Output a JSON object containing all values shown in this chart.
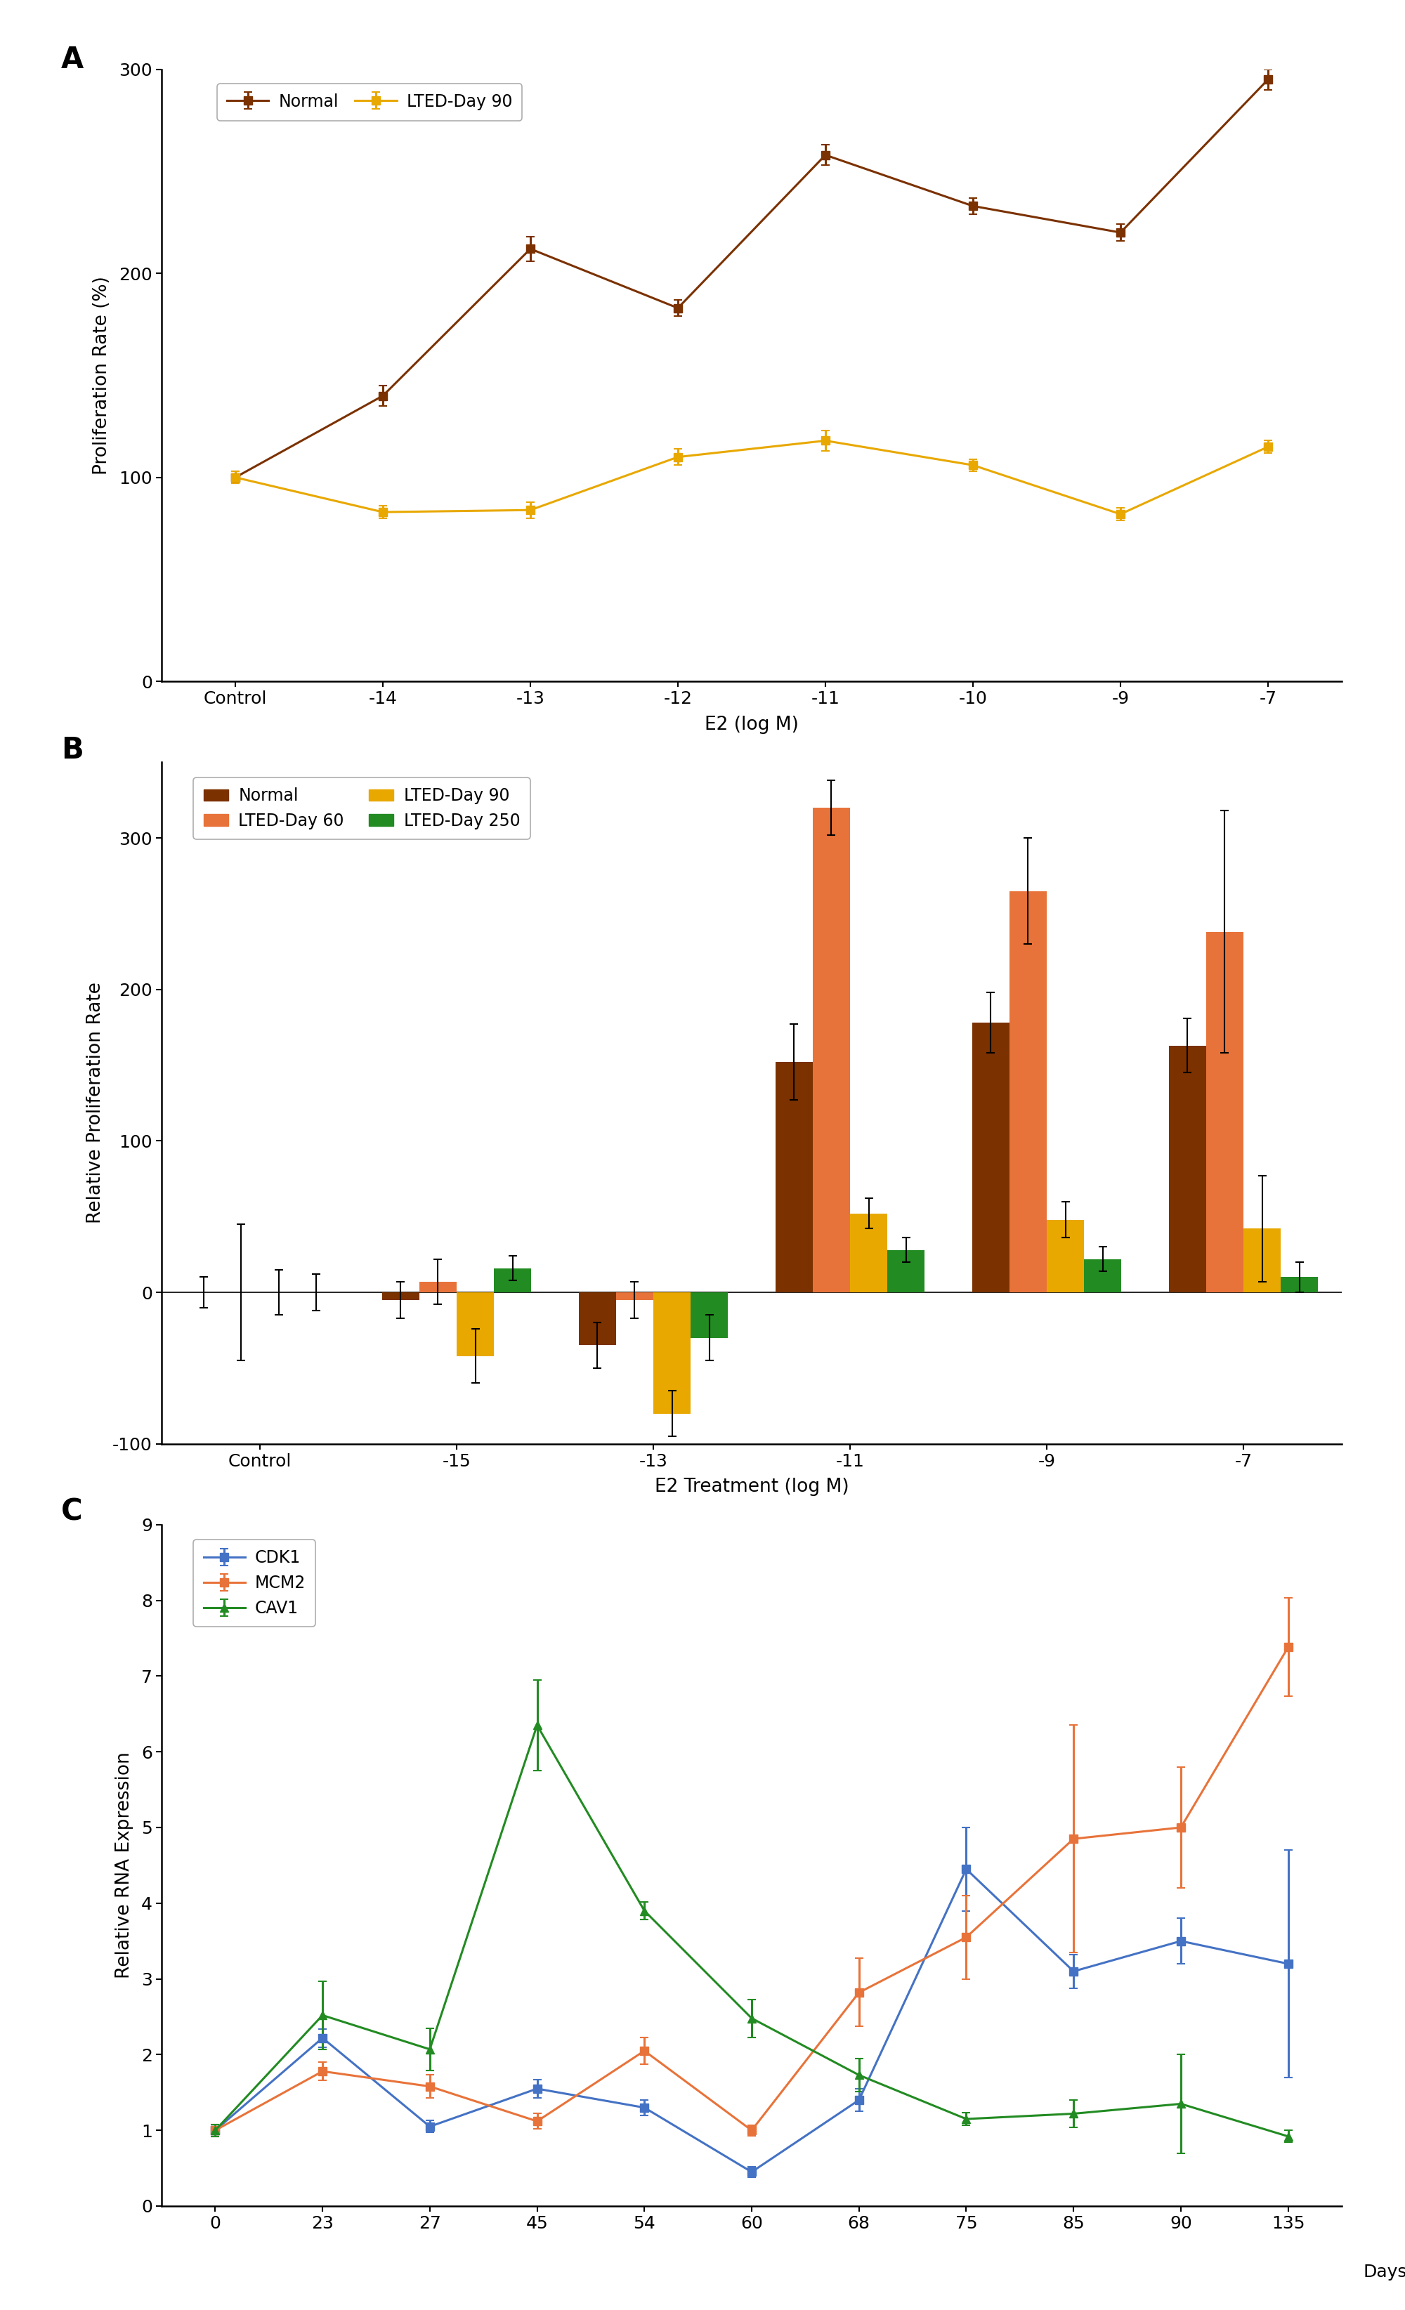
{
  "panel_A": {
    "xlabel": "E2 (log M)",
    "ylabel": "Proliferation Rate (%)",
    "xlabels": [
      "Control",
      "-14",
      "-13",
      "-12",
      "-11",
      "-10",
      "-9",
      "-7"
    ],
    "normal_y": [
      100,
      140,
      212,
      183,
      258,
      233,
      220,
      295
    ],
    "normal_yerr": [
      3,
      5,
      6,
      4,
      5,
      4,
      4,
      5
    ],
    "lted90_y": [
      100,
      83,
      84,
      110,
      118,
      106,
      82,
      115
    ],
    "lted90_yerr": [
      3,
      3,
      4,
      4,
      5,
      3,
      3,
      3
    ],
    "normal_color": "#7B3100",
    "lted90_color": "#E8A800",
    "ylim": [
      0,
      300
    ],
    "yticks": [
      0,
      100,
      200,
      300
    ]
  },
  "panel_B": {
    "xlabel": "E2 Treatment (log M)",
    "ylabel": "Relative Proliferation Rate",
    "xlabels": [
      "Control",
      "-15",
      "-13",
      "-11",
      "-9",
      "-7"
    ],
    "normal_y": [
      0,
      -5,
      -35,
      152,
      178,
      163
    ],
    "normal_yerr": [
      10,
      12,
      15,
      25,
      20,
      18
    ],
    "lted60_y": [
      0,
      7,
      -5,
      320,
      265,
      238
    ],
    "lted60_yerr": [
      45,
      15,
      12,
      18,
      35,
      80
    ],
    "lted90_y": [
      0,
      -42,
      -80,
      52,
      48,
      42
    ],
    "lted90_yerr": [
      15,
      18,
      15,
      10,
      12,
      35
    ],
    "lted250_y": [
      0,
      16,
      -30,
      28,
      22,
      10
    ],
    "lted250_yerr": [
      12,
      8,
      15,
      8,
      8,
      10
    ],
    "normal_color": "#7B3100",
    "lted60_color": "#E8733A",
    "lted90_color": "#E8A800",
    "lted250_color": "#228B22",
    "ylim": [
      -100,
      350
    ],
    "yticks": [
      -100,
      0,
      100,
      200,
      300
    ]
  },
  "panel_C": {
    "xlabel": "Days",
    "ylabel": "Relative RNA Expression",
    "x_days": [
      0,
      23,
      27,
      45,
      54,
      60,
      68,
      75,
      85,
      90,
      135
    ],
    "cdk1_y": [
      1.0,
      2.22,
      1.05,
      1.55,
      1.3,
      0.45,
      1.4,
      4.45,
      3.1,
      3.5,
      3.2
    ],
    "cdk1_yerr": [
      0.05,
      0.12,
      0.08,
      0.12,
      0.1,
      0.07,
      0.15,
      0.55,
      0.22,
      0.3,
      1.5
    ],
    "mcm2_y": [
      1.0,
      1.78,
      1.58,
      1.12,
      2.05,
      1.0,
      2.82,
      3.55,
      4.85,
      5.0,
      7.38
    ],
    "mcm2_yerr": [
      0.08,
      0.12,
      0.15,
      0.1,
      0.18,
      0.07,
      0.45,
      0.55,
      1.5,
      0.8,
      0.65
    ],
    "cav1_y": [
      1.0,
      2.52,
      2.07,
      6.35,
      3.9,
      2.48,
      1.73,
      1.15,
      1.22,
      1.35,
      0.92
    ],
    "cav1_yerr": [
      0.08,
      0.45,
      0.28,
      0.6,
      0.12,
      0.25,
      0.22,
      0.08,
      0.18,
      0.65,
      0.08
    ],
    "cdk1_color": "#4472C4",
    "mcm2_color": "#E8733A",
    "cav1_color": "#228B22",
    "ylim": [
      0,
      9
    ],
    "yticks": [
      0,
      1,
      2,
      3,
      4,
      5,
      6,
      7,
      8,
      9
    ]
  }
}
